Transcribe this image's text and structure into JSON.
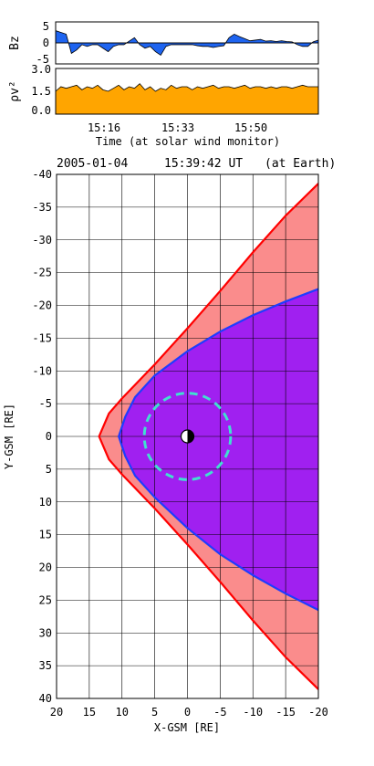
{
  "chart_data": [
    {
      "type": "area",
      "ylabel": "Bz",
      "y_ticks": [
        "5",
        "0",
        "-5"
      ],
      "ylim": [
        -6,
        6
      ],
      "fill_color": "#1e64f0",
      "series": [
        {
          "x": [
            0,
            2,
            4,
            6,
            8,
            10,
            12,
            14,
            16,
            18,
            20,
            22,
            24,
            26,
            28,
            30,
            32,
            34,
            36,
            38,
            40,
            42,
            44,
            46,
            48,
            50,
            52,
            54,
            56,
            58,
            60,
            62,
            64,
            66,
            68,
            70,
            72,
            74,
            76,
            78,
            80,
            82,
            84,
            86,
            88,
            90,
            92,
            94,
            96,
            98,
            100
          ],
          "values": [
            3.5,
            3.0,
            2.5,
            -3.0,
            -2.0,
            -0.5,
            -1.0,
            -0.5,
            -0.5,
            -1.5,
            -2.5,
            -1.0,
            -0.5,
            -0.5,
            0.5,
            1.5,
            -0.5,
            -1.5,
            -1.0,
            -2.5,
            -3.5,
            -1.0,
            -0.5,
            -0.5,
            -0.5,
            -0.5,
            -0.5,
            -0.8,
            -1.0,
            -1.0,
            -1.3,
            -1.0,
            -0.8,
            1.5,
            2.5,
            1.8,
            1.2,
            0.6,
            0.8,
            1.0,
            0.5,
            0.6,
            0.4,
            0.6,
            0.4,
            0.3,
            -0.5,
            -1.0,
            -1.0,
            0.3,
            0.8
          ]
        }
      ]
    },
    {
      "type": "area",
      "ylabel": "ρv²",
      "y_ticks": [
        "3.0",
        "1.5",
        "0.0"
      ],
      "ylim": [
        0,
        3.0
      ],
      "fill_color": "#ffa500",
      "series": [
        {
          "x": [
            0,
            2,
            4,
            6,
            8,
            10,
            12,
            14,
            16,
            18,
            20,
            22,
            24,
            26,
            28,
            30,
            32,
            34,
            36,
            38,
            40,
            42,
            44,
            46,
            48,
            50,
            52,
            54,
            56,
            58,
            60,
            62,
            64,
            66,
            68,
            70,
            72,
            74,
            76,
            78,
            80,
            82,
            84,
            86,
            88,
            90,
            92,
            94,
            96,
            98,
            100
          ],
          "values": [
            1.5,
            1.8,
            1.7,
            1.8,
            1.9,
            1.6,
            1.8,
            1.7,
            1.9,
            1.6,
            1.5,
            1.7,
            1.9,
            1.6,
            1.8,
            1.7,
            2.0,
            1.6,
            1.8,
            1.5,
            1.7,
            1.6,
            1.9,
            1.7,
            1.8,
            1.8,
            1.6,
            1.8,
            1.7,
            1.8,
            1.9,
            1.7,
            1.8,
            1.8,
            1.7,
            1.8,
            1.9,
            1.7,
            1.8,
            1.8,
            1.7,
            1.8,
            1.7,
            1.8,
            1.8,
            1.7,
            1.8,
            1.9,
            1.8,
            1.8,
            1.8
          ]
        }
      ],
      "x_tick_labels": [
        "15:16",
        "15:33",
        "15:50"
      ],
      "xlabel": "Time (at solar wind monitor)"
    },
    {
      "type": "area",
      "title_left": "2005-01-04",
      "title_center": "15:39:42 UT",
      "title_right": "(at Earth)",
      "xlabel": "X-GSM [RE]",
      "ylabel": "Y-GSM [RE]",
      "xlim": [
        20,
        -20
      ],
      "ylim": [
        -40,
        40
      ],
      "x_ticks": [
        20,
        15,
        10,
        5,
        0,
        -5,
        -10,
        -15,
        -20
      ],
      "y_ticks": [
        -40,
        -35,
        -30,
        -25,
        -20,
        -15,
        -10,
        -5,
        0,
        5,
        10,
        15,
        20,
        25,
        30,
        35,
        40
      ],
      "grid": true,
      "series": [
        {
          "name": "Bow shock",
          "color": "#ff0000",
          "fill": "#fa8c8c",
          "points": [
            [
              -20,
              -38.6
            ],
            [
              -15,
              -33.7
            ],
            [
              -10,
              -28.1
            ],
            [
              -5,
              -22.2
            ],
            [
              0,
              -16.5
            ],
            [
              5,
              -11.0
            ],
            [
              10,
              -5.8
            ],
            [
              12,
              -3.5
            ],
            [
              13.5,
              0
            ],
            [
              12,
              3.5
            ],
            [
              10,
              5.8
            ],
            [
              5,
              11.0
            ],
            [
              0,
              16.5
            ],
            [
              -5,
              22.2
            ],
            [
              -10,
              28.1
            ],
            [
              -15,
              33.7
            ],
            [
              -20,
              38.6
            ]
          ]
        },
        {
          "name": "Magnetopause",
          "color": "#1e3cff",
          "fill": "#a020f0",
          "points": [
            [
              -20,
              -22.5
            ],
            [
              -15,
              -20.6
            ],
            [
              -10,
              -18.5
            ],
            [
              -5,
              -16.0
            ],
            [
              0,
              -13.0
            ],
            [
              5,
              -9.3
            ],
            [
              8,
              -6.0
            ],
            [
              9.5,
              -3.0
            ],
            [
              10.5,
              0
            ],
            [
              9.5,
              3.0
            ],
            [
              8,
              6.0
            ],
            [
              5,
              9.3
            ],
            [
              0,
              14.0
            ],
            [
              -5,
              18.0
            ],
            [
              -10,
              21.2
            ],
            [
              -15,
              24.0
            ],
            [
              -20,
              26.5
            ]
          ]
        },
        {
          "name": "Geosynchronous orbit",
          "color": "#40e0d0",
          "radius": 6.6
        },
        {
          "name": "Earth",
          "color": "#000000",
          "radius": 1.0
        }
      ]
    }
  ]
}
